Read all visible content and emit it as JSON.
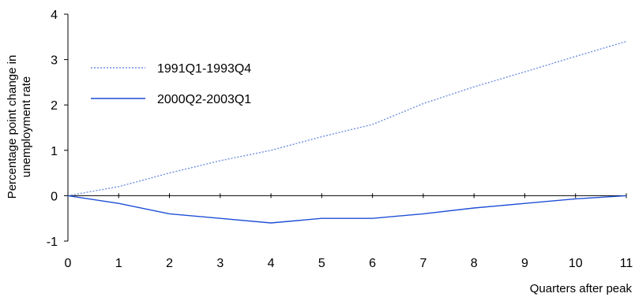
{
  "chart_data": {
    "type": "line",
    "xlabel": "Quarters after peak",
    "ylabel": "Percentage point change in unemployment rate",
    "xlim": [
      0,
      11
    ],
    "ylim": [
      -1,
      4
    ],
    "x_ticks": [
      "0",
      "1",
      "2",
      "3",
      "4",
      "5",
      "6",
      "7",
      "8",
      "9",
      "10",
      "11"
    ],
    "y_ticks": [
      "-1",
      "0",
      "1",
      "2",
      "3",
      "4"
    ],
    "grid": false,
    "legend_position": "top-left",
    "series": [
      {
        "name": "1991Q1-1993Q4",
        "style": "dotted",
        "color": "#6f8fe0",
        "x": [
          0,
          1,
          2,
          3,
          4,
          5,
          6,
          7,
          8,
          9,
          10,
          11
        ],
        "y": [
          0,
          0.2,
          0.5,
          0.77,
          1.0,
          1.3,
          1.57,
          2.03,
          2.4,
          2.73,
          3.07,
          3.4
        ]
      },
      {
        "name": "2000Q2-2003Q1",
        "style": "solid",
        "color": "#1f4fd6",
        "x": [
          0,
          1,
          2,
          3,
          4,
          5,
          6,
          7,
          8,
          9,
          10,
          11
        ],
        "y": [
          0,
          -0.17,
          -0.4,
          -0.5,
          -0.6,
          -0.5,
          -0.5,
          -0.4,
          -0.27,
          -0.17,
          -0.07,
          0
        ]
      }
    ]
  }
}
